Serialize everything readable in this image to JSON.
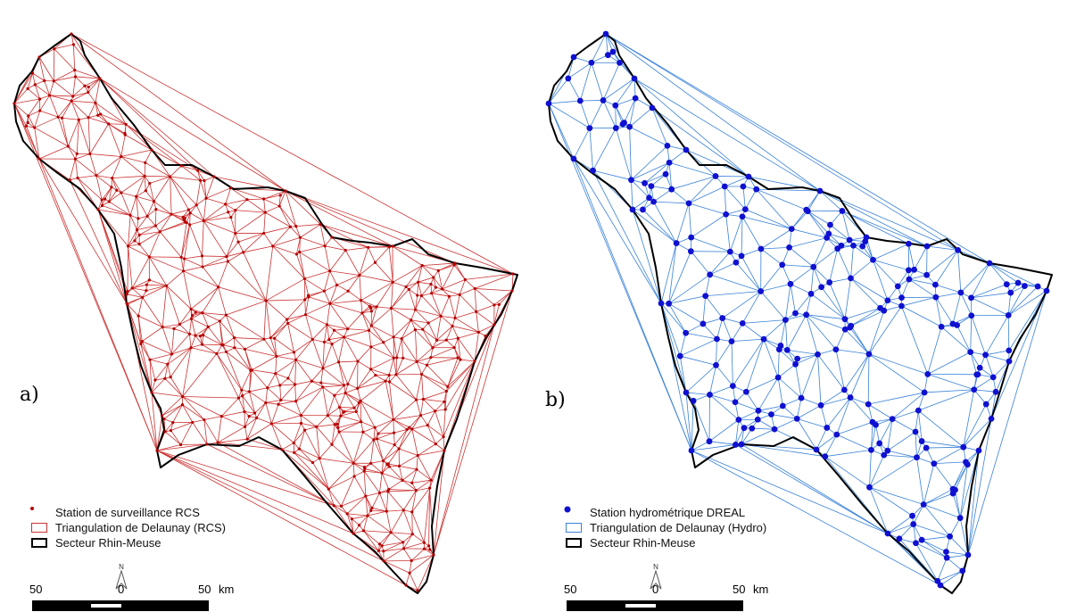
{
  "panels": [
    {
      "label": "a)",
      "point_color": "#b30000",
      "line_color": "#cc3333",
      "legend": {
        "stations": "Station de surveillance RCS",
        "triangulation": "Triangulation de Delaunay (RCS)",
        "sector": "Secteur Rhin-Meuse"
      },
      "scale": {
        "left_value": "50",
        "zero": "0",
        "right_value": "50",
        "unit": "km"
      },
      "north": "N"
    },
    {
      "label": "b)",
      "point_color": "#1010d0",
      "line_color": "#3a82d8",
      "legend": {
        "stations": "Station hydrométrique DREAL",
        "triangulation": "Triangulation de Delaunay (Hydro)",
        "sector": "Secteur Rhin-Meuse"
      },
      "scale": {
        "left_value": "50",
        "zero": "0",
        "right_value": "50",
        "unit": "km"
      },
      "north": "N"
    }
  ]
}
